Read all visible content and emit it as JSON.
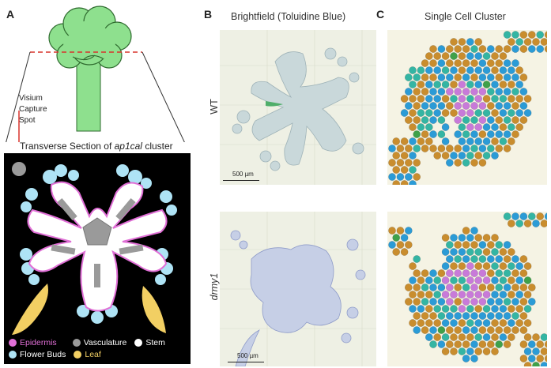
{
  "panels": {
    "a": "A",
    "b": "B",
    "c": "C"
  },
  "column_titles": {
    "brightfield": "Brightfield (Toluidine Blue)",
    "cluster": "Single Cell Cluster"
  },
  "row_labels": {
    "wt": "WT",
    "mutant": "drmy1"
  },
  "panel_a": {
    "visium_label_line1": "Visium",
    "visium_label_line2": "Capture",
    "visium_label_line3": "Spot",
    "section_title_pre": "Transverse Section of ",
    "section_title_italic": "ap1cal",
    "section_title_post": " cluster"
  },
  "legend": [
    {
      "label": "Epidermis",
      "color": "#e06fd6",
      "text_color": "#e06fd6"
    },
    {
      "label": "Vasculature",
      "color": "#9a9a9a",
      "text_color": "#ffffff"
    },
    {
      "label": "Stem",
      "color": "#ffffff",
      "text_color": "#ffffff"
    },
    {
      "label": "Flower Buds",
      "color": "#aee3f5",
      "text_color": "#ffffff"
    },
    {
      "label": "Leaf",
      "color": "#f2cf63",
      "text_color": "#f2cf63"
    }
  ],
  "scale_bars": {
    "top": "500 µm",
    "bottom": "500 µm"
  },
  "colors": {
    "tree_green": "#8ee08e",
    "cut_line": "#d9332b",
    "epidermis": "#e06fd6",
    "vasculature": "#9a9a9a",
    "flower_buds": "#aee3f5",
    "leaf": "#f2cf63",
    "spot_blue": "#2b9bd6",
    "spot_orange": "#c98d2e",
    "spot_teal": "#34b5a3",
    "spot_purple": "#c87ad9",
    "spot_green": "#3fa14a"
  },
  "icons": {
    "arrow": "arrow-down-icon"
  }
}
